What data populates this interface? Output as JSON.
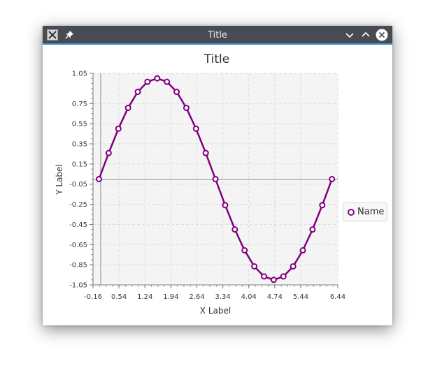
{
  "window": {
    "title": "Title",
    "icons": {
      "app": "app-logo-icon",
      "pin": "pin-icon",
      "minimize": "chevron-down-icon",
      "maximize": "chevron-up-icon",
      "close": "close-icon"
    }
  },
  "chart_data": {
    "type": "line",
    "title": "Title",
    "xlabel": "X Label",
    "ylabel": "Y Label",
    "xlim": [
      -0.16,
      6.44
    ],
    "ylim": [
      -1.05,
      1.05
    ],
    "x_ticks": [
      "-0.16",
      "0.54",
      "1.24",
      "1.94",
      "2.64",
      "3.34",
      "4.04",
      "4.74",
      "5.44",
      "6.44"
    ],
    "y_ticks": [
      "1.05",
      "0.75",
      "0.55",
      "0.35",
      "0.15",
      "-0.05",
      "-0.25",
      "-0.45",
      "-0.65",
      "-0.85",
      "-1.05"
    ],
    "grid": true,
    "legend_position": "right",
    "series": [
      {
        "name": "Name",
        "color": "#800080",
        "x": [
          0,
          0.2618,
          0.5236,
          0.7854,
          1.0472,
          1.309,
          1.5708,
          1.8326,
          2.0944,
          2.3562,
          2.618,
          2.8798,
          3.1416,
          3.4034,
          3.6652,
          3.927,
          4.1888,
          4.4506,
          4.7124,
          4.9742,
          5.236,
          5.4978,
          5.7596,
          6.0214,
          6.2832
        ],
        "y": [
          0,
          0.2588,
          0.5,
          0.7071,
          0.866,
          0.9659,
          1.0,
          0.9659,
          0.866,
          0.7071,
          0.5,
          0.2588,
          0,
          -0.2588,
          -0.5,
          -0.7071,
          -0.866,
          -0.9659,
          -1.0,
          -0.9659,
          -0.866,
          -0.7071,
          -0.5,
          -0.2588,
          0
        ]
      }
    ]
  }
}
